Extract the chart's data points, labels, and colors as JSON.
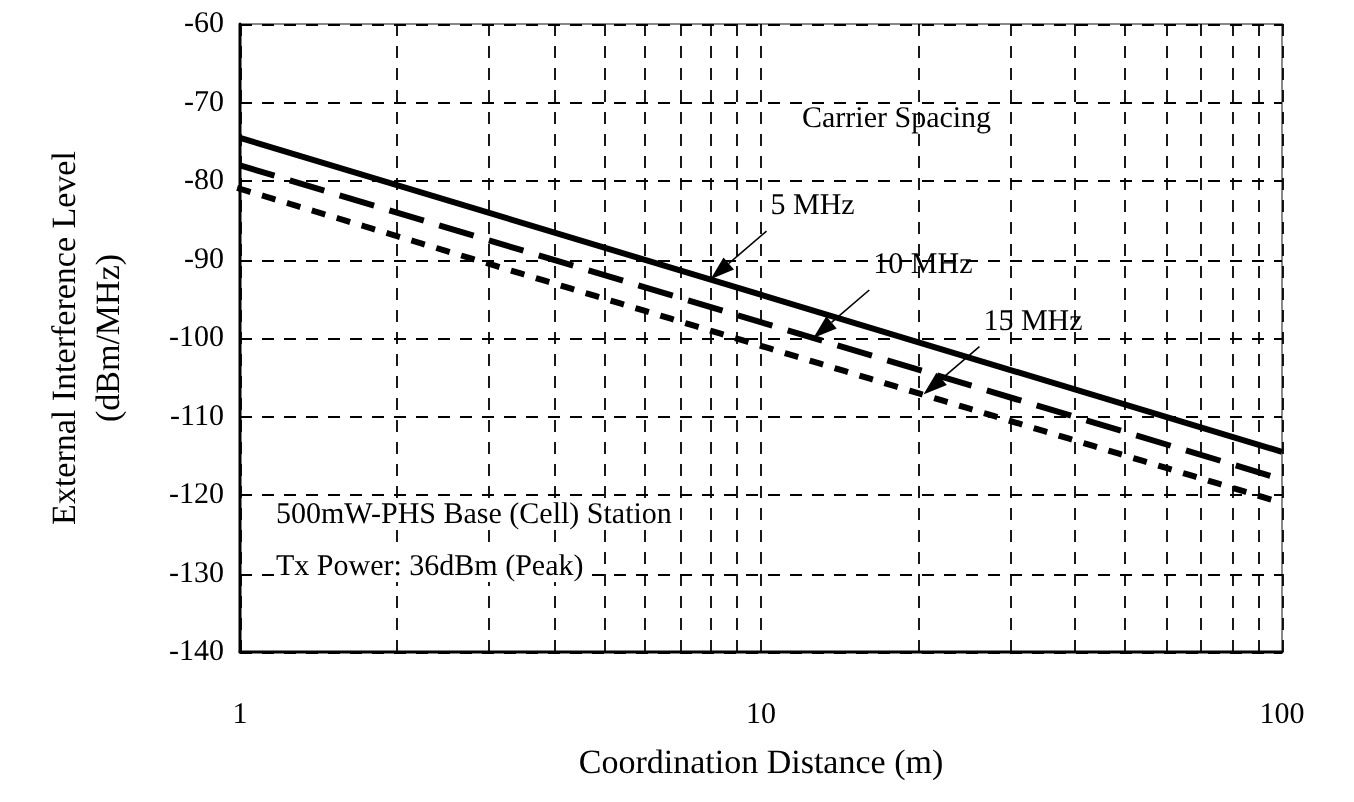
{
  "chart_data": {
    "type": "line",
    "xlabel": "Coordination Distance (m)",
    "ylabel": "External Interference Level\n(dBm/MHz)",
    "x": [
      1,
      100
    ],
    "log": "x",
    "series": [
      {
        "color": "#000000",
        "values": [
          -74.5,
          -114.5
        ],
        "line_style": "solid"
      },
      {
        "color": "#000000",
        "values": [
          -78,
          -118
        ],
        "line_style": "dashed"
      },
      {
        "color": "#000000",
        "values": [
          -81,
          -121
        ],
        "line_style": "dotted"
      }
    ],
    "xlim": [
      1,
      100
    ],
    "xticks": [
      1,
      {
        "value": 2,
        "label": null
      },
      {
        "value": 3,
        "label": null
      },
      {
        "value": 4,
        "label": null
      },
      {
        "value": 5,
        "label": null
      },
      {
        "value": 6,
        "label": null
      },
      {
        "value": 7,
        "label": null
      },
      {
        "value": 8,
        "label": null
      },
      {
        "value": 9,
        "label": null
      },
      10,
      {
        "value": 20,
        "label": null
      },
      {
        "value": 30,
        "label": null
      },
      {
        "value": 40,
        "label": null
      },
      {
        "value": 50,
        "label": null
      },
      {
        "value": 60,
        "label": null
      },
      {
        "value": 70,
        "label": null
      },
      {
        "value": 80,
        "label": null
      },
      {
        "value": 90,
        "label": null
      },
      100
    ],
    "ylim": [
      -140,
      -60
    ],
    "yticks": [
      -140,
      -130,
      -120,
      -110,
      -100,
      -90,
      -80,
      -70,
      -60
    ],
    "grid": true,
    "marker": "none",
    "annotations": [
      "Carrier Spacing",
      {
        "text": "5 MHz",
        "x": 8,
        "y": -92.5
      },
      {
        "text": "10 MHz",
        "x": 12.6,
        "y": -100
      },
      {
        "text": "15 MHz",
        "x": 20.5,
        "y": -107.2
      },
      "500mW-PHS Base (Cell) Station",
      "Tx Power: 36dBm (Peak)"
    ]
  }
}
